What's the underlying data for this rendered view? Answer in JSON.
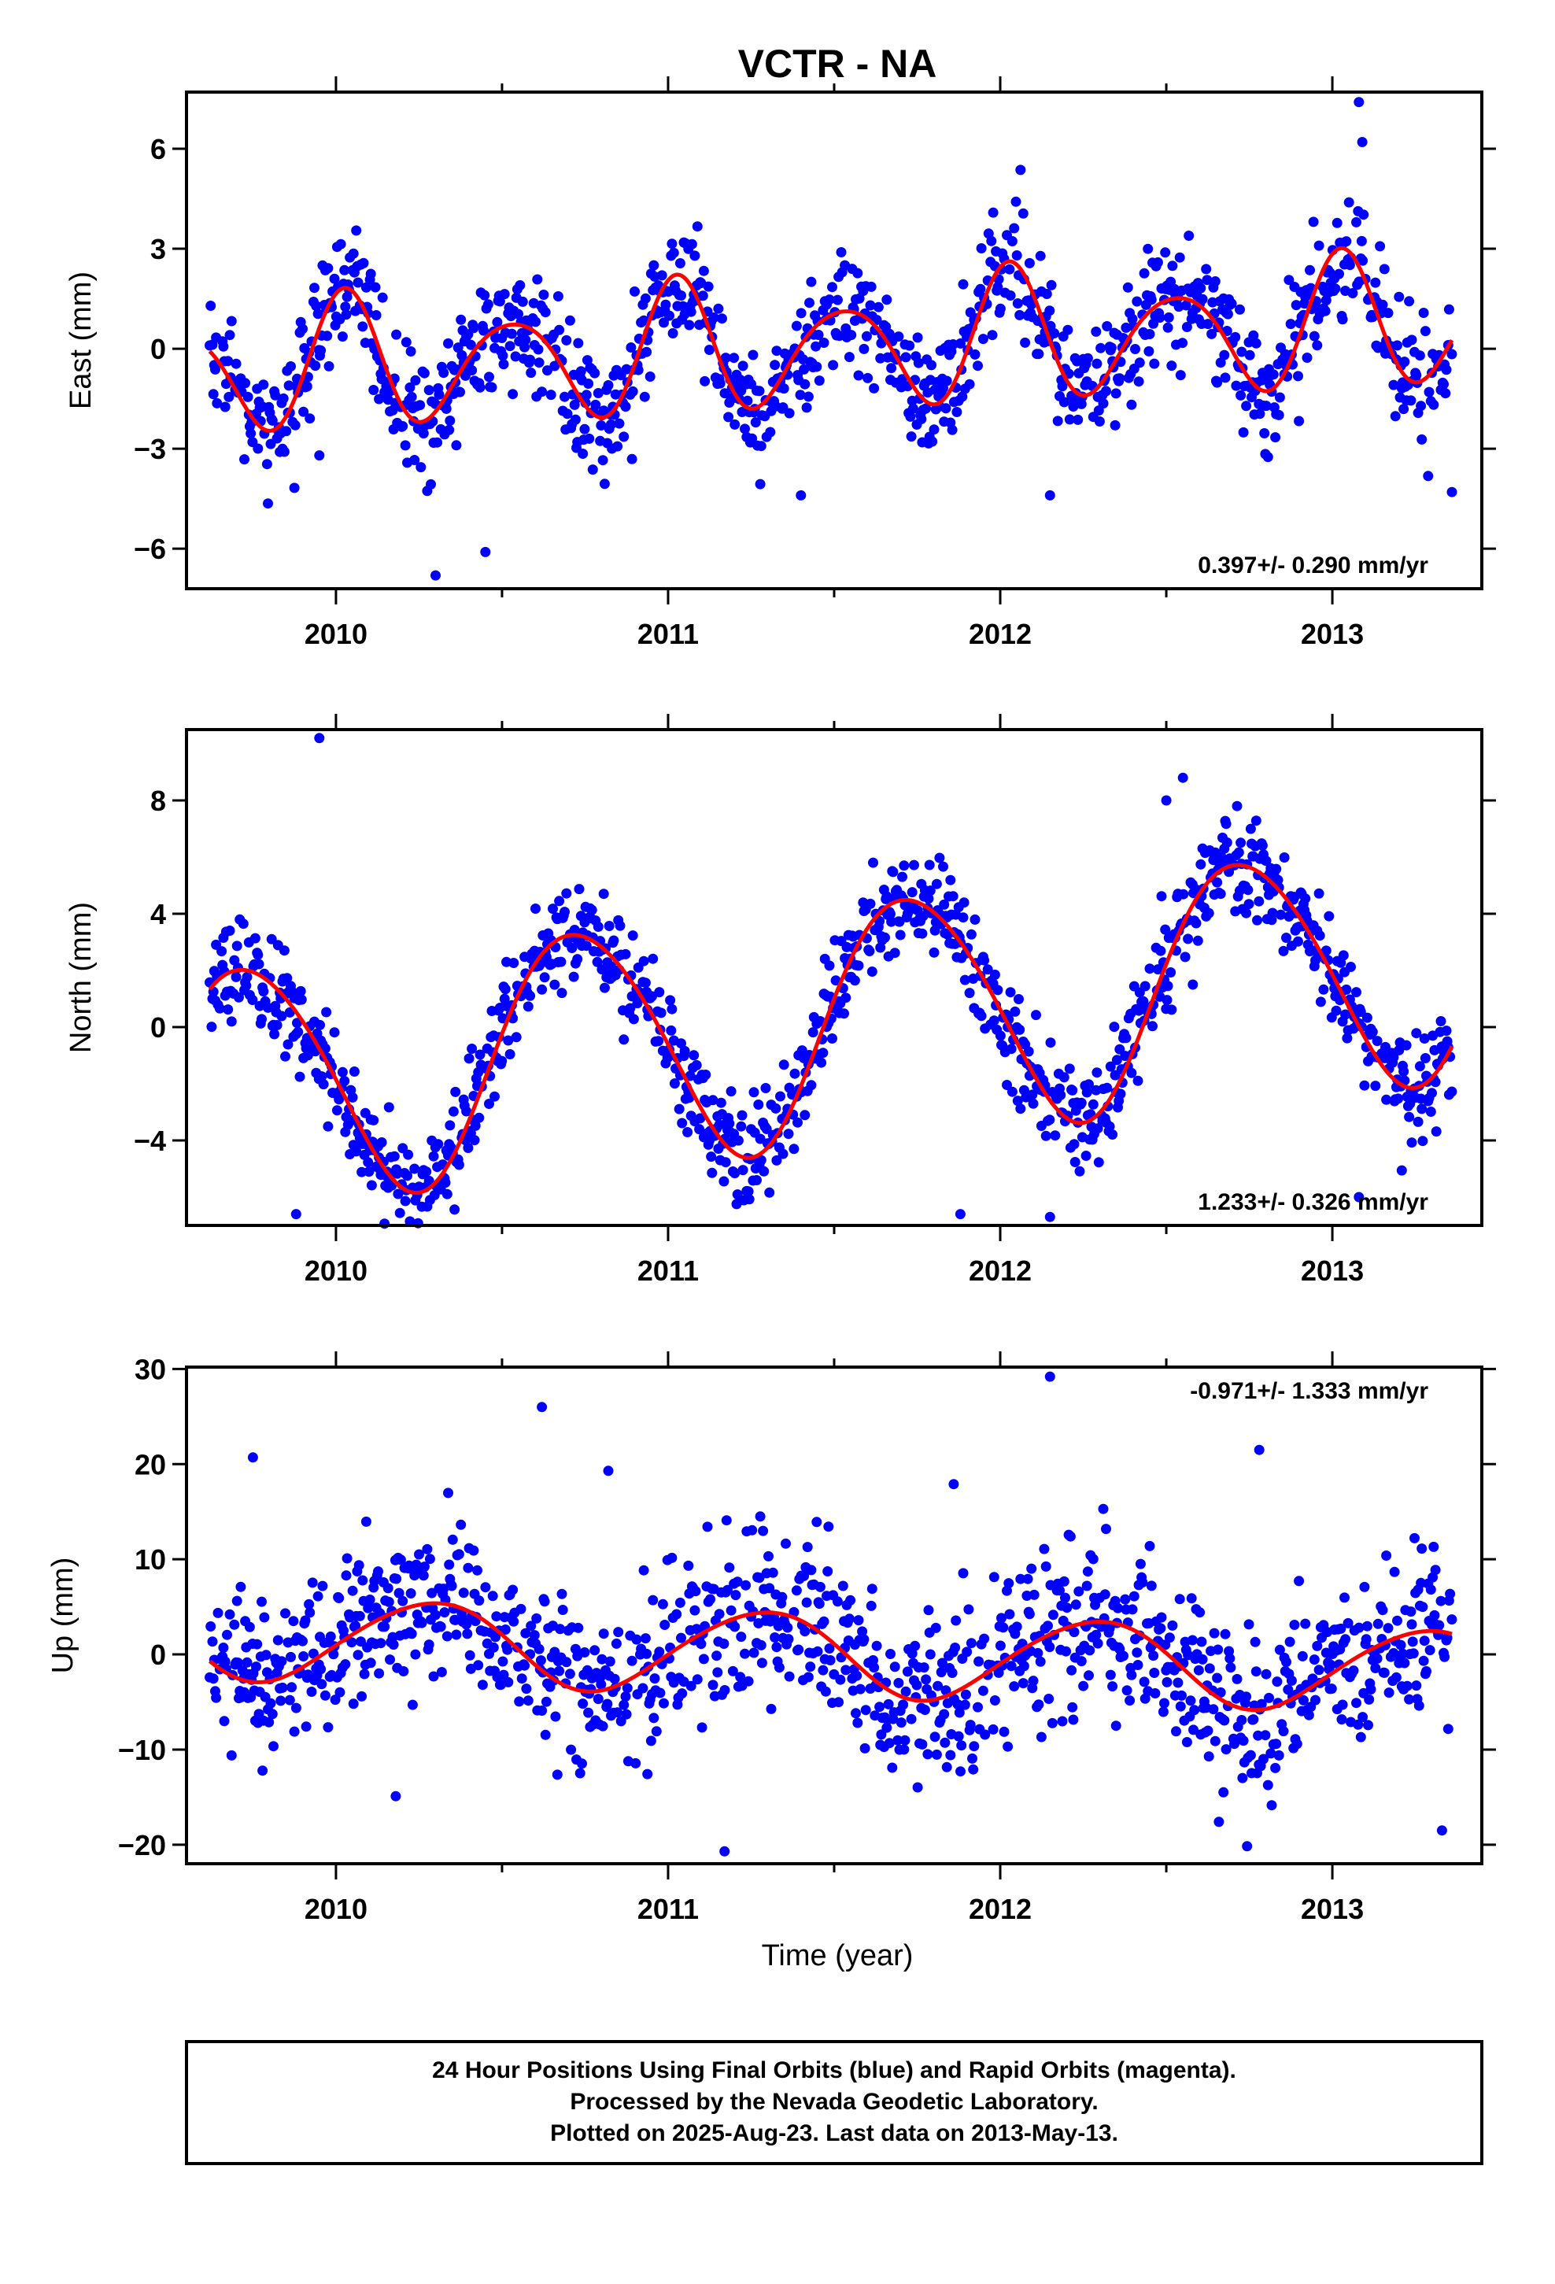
{
  "title": "VCTR - NA",
  "xlabel": "Time (year)",
  "footer": [
    "24 Hour Positions Using Final Orbits (blue) and Rapid Orbits (magenta).",
    "Processed by the Nevada Geodetic Laboratory.",
    "Plotted on 2025-Aug-23. Last data on 2013-May-13."
  ],
  "colors": {
    "points": "#0000ff",
    "fit": "#ff0000",
    "frame": "#000000"
  },
  "chart_data": [
    {
      "type": "scatter",
      "ylabel": "East (mm)",
      "rate_text": "0.397+/- 0.290 mm/yr",
      "rate_position": "bottom-right",
      "xlim": [
        2009.55,
        2013.45
      ],
      "ylim": [
        -7.2,
        7.7
      ],
      "xticks": [
        2010,
        2011,
        2012,
        2013
      ],
      "yticks": [
        6,
        3,
        0,
        -3,
        -6
      ],
      "ytick_labels": [
        "6",
        "3",
        "0",
        "−3",
        "−6"
      ],
      "x_range": [
        2009.62,
        2013.36
      ],
      "fit": {
        "intercept": 0.05,
        "rate": 0.397,
        "t0": 2011.5,
        "annual": [
          0.2,
          0.05
        ],
        "semiannual": [
          1.6,
          0.6
        ],
        "terannual": [
          0.4,
          0.2
        ],
        "jumps": []
      },
      "spread": 0.9,
      "outliers": [
        [
          2010.3,
          -6.8
        ],
        [
          2013.08,
          7.4
        ],
        [
          2013.09,
          6.2
        ],
        [
          2012.15,
          -4.4
        ],
        [
          2010.45,
          -6.1
        ],
        [
          2009.95,
          -3.2
        ],
        [
          2011.4,
          -4.4
        ],
        [
          2013.36,
          -4.3
        ]
      ]
    },
    {
      "type": "scatter",
      "ylabel": "North (mm)",
      "rate_text": "1.233+/- 0.326 mm/yr",
      "rate_position": "bottom-right",
      "xlim": [
        2009.55,
        2013.45
      ],
      "ylim": [
        -7.0,
        10.5
      ],
      "xticks": [
        2010,
        2011,
        2012,
        2013
      ],
      "yticks": [
        8,
        4,
        0,
        -4
      ],
      "ytick_labels": [
        "8",
        "4",
        "0",
        "−4"
      ],
      "x_range": [
        2009.62,
        2013.36
      ],
      "fit": {
        "intercept": 0.2,
        "rate": 1.233,
        "t0": 2011.5,
        "annual": [
          -0.5,
          -4.2
        ],
        "semiannual": [
          0.3,
          0.2
        ],
        "terannual": [
          0.0,
          0.0
        ],
        "jumps": []
      },
      "spread": 0.9,
      "outliers": [
        [
          2009.95,
          10.2
        ],
        [
          2012.55,
          8.8
        ],
        [
          2012.15,
          -6.7
        ],
        [
          2013.08,
          -6.0
        ],
        [
          2009.88,
          -6.6
        ],
        [
          2012.5,
          8.0
        ],
        [
          2012.58,
          1.5
        ],
        [
          2011.88,
          -6.6
        ]
      ]
    },
    {
      "type": "scatter",
      "ylabel": "Up (mm)",
      "rate_text": "-0.971+/- 1.333 mm/yr",
      "rate_position": "top-right",
      "xlim": [
        2009.55,
        2013.45
      ],
      "ylim": [
        -22,
        30.2
      ],
      "xticks": [
        2010,
        2011,
        2012,
        2013
      ],
      "yticks": [
        30,
        20,
        10,
        0,
        -10,
        -20
      ],
      "ytick_labels": [
        "30",
        "20",
        "10",
        "0",
        "−10",
        "−20"
      ],
      "x_range": [
        2009.62,
        2013.36
      ],
      "fit": {
        "intercept": 0.0,
        "rate": -0.971,
        "t0": 2011.5,
        "annual": [
          -0.8,
          4.3
        ],
        "semiannual": [
          0.3,
          -0.2
        ],
        "terannual": [
          0.0,
          0.0
        ],
        "jumps": []
      },
      "spread": 4.2,
      "outliers": [
        [
          2010.62,
          26.0
        ],
        [
          2012.15,
          29.2
        ],
        [
          2010.82,
          19.3
        ],
        [
          2012.78,
          21.5
        ],
        [
          2011.17,
          -20.7
        ],
        [
          2013.33,
          -18.5
        ],
        [
          2009.75,
          20.7
        ],
        [
          2011.86,
          17.9
        ],
        [
          2010.18,
          -14.9
        ]
      ]
    }
  ]
}
